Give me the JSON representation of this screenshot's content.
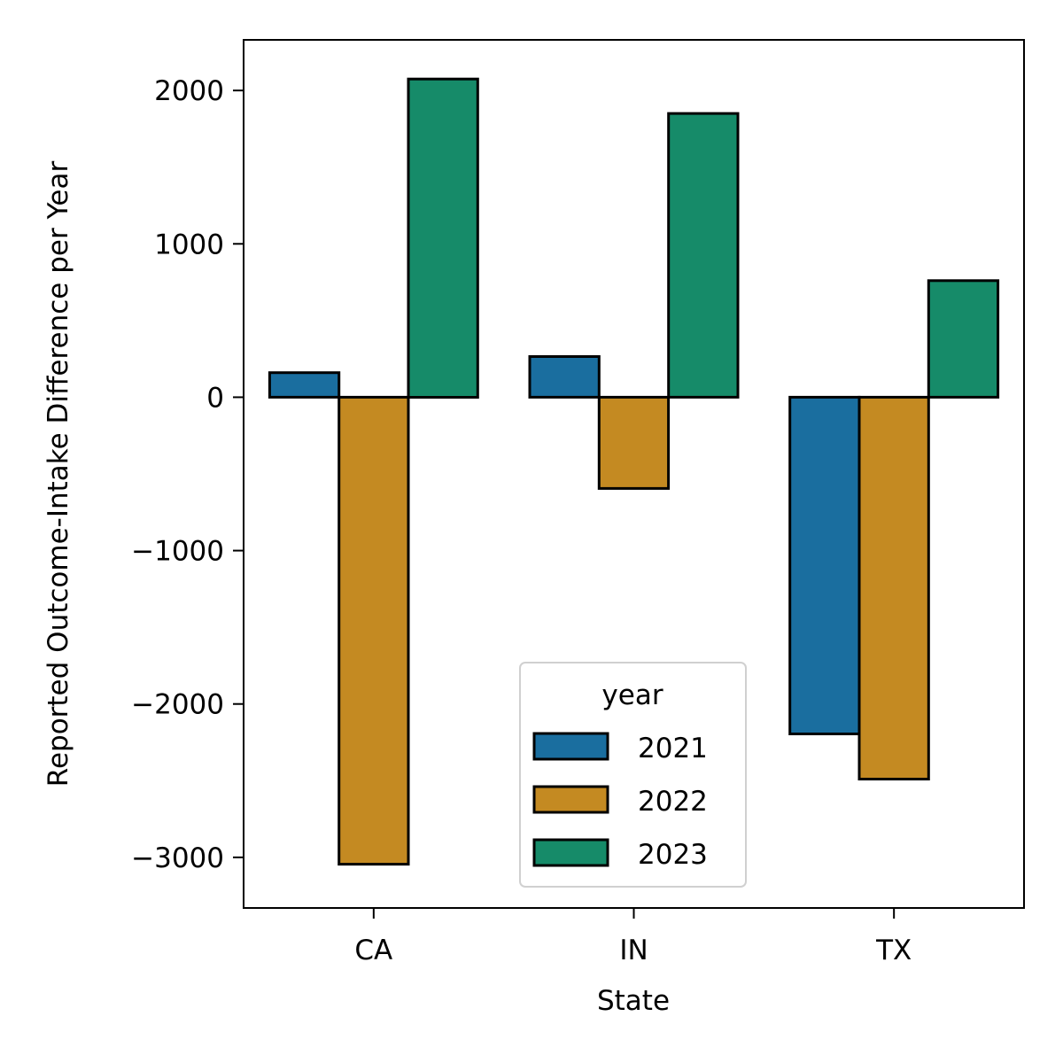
{
  "chart_data": {
    "type": "bar",
    "categories": [
      "CA",
      "IN",
      "TX"
    ],
    "series": [
      {
        "name": "2021",
        "values": [
          160,
          265,
          -2195
        ],
        "color": "#1a6e9f"
      },
      {
        "name": "2022",
        "values": [
          -3045,
          -595,
          -2490
        ],
        "color": "#c48a22"
      },
      {
        "name": "2023",
        "values": [
          2075,
          1850,
          760
        ],
        "color": "#168b69"
      }
    ],
    "title": "",
    "xlabel": "State",
    "ylabel": "Reported Outcome-Intake Difference per Year",
    "ylim": [
      -3330,
      2330
    ],
    "yticks": [
      -3000,
      -2000,
      -1000,
      0,
      1000,
      2000
    ],
    "ytick_labels": [
      "−3000",
      "−2000",
      "−1000",
      "0",
      "1000",
      "2000"
    ],
    "legend": {
      "title": "year",
      "placement": "lower-center"
    },
    "grid": false
  }
}
